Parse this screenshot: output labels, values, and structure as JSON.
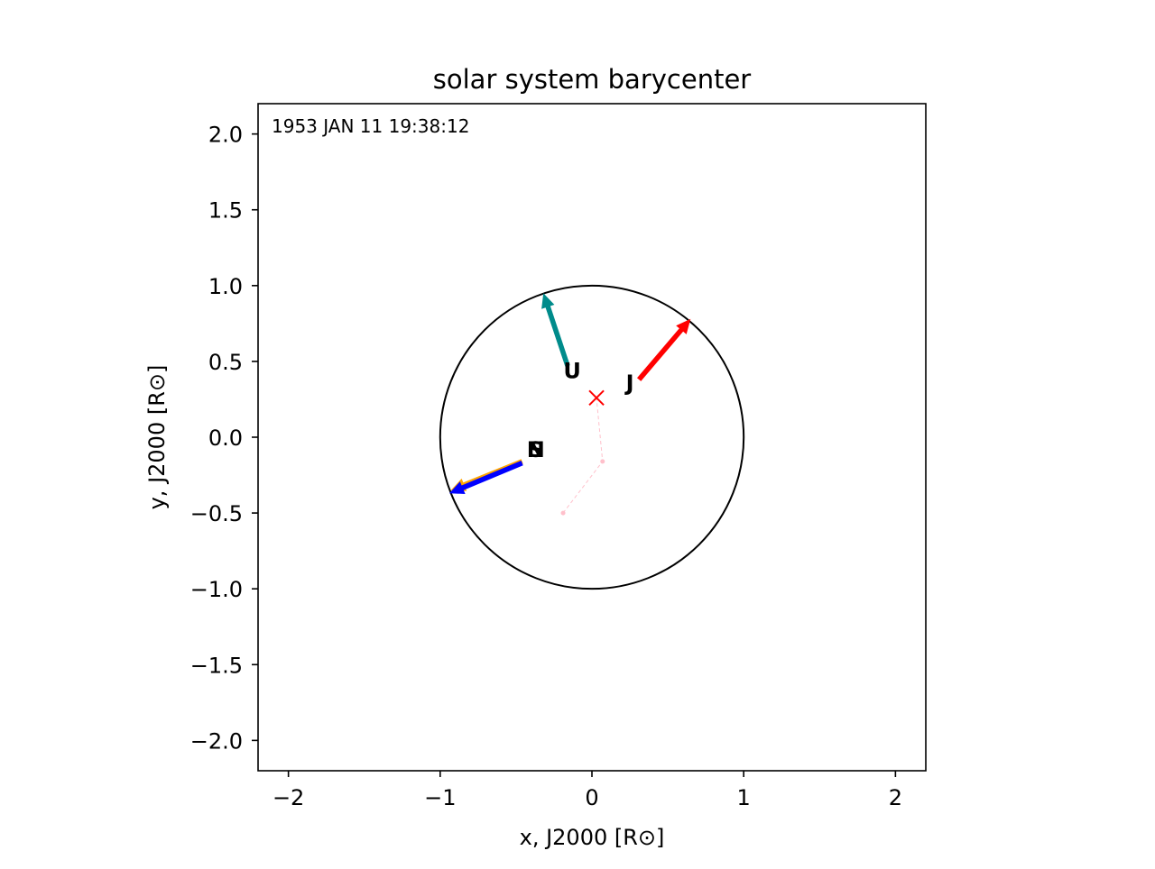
{
  "chart_data": {
    "type": "scatter",
    "title": "solar system barycenter",
    "xlabel": "x, J2000 [R⊙]",
    "ylabel": "y, J2000 [R⊙]",
    "xlim": [
      -2.2,
      2.2
    ],
    "ylim": [
      -2.2,
      2.2
    ],
    "x_ticks": [
      -2,
      -1,
      0,
      1,
      2
    ],
    "x_tick_labels": [
      "−2",
      "−1",
      "0",
      "1",
      "2"
    ],
    "y_ticks": [
      2.0,
      1.5,
      1.0,
      0.5,
      0.0,
      -0.5,
      -1.0,
      -1.5,
      -2.0
    ],
    "y_tick_labels": [
      "2.0",
      "1.5",
      "1.0",
      "0.5",
      "0.0",
      "−0.5",
      "−1.0",
      "−1.5",
      "−2.0"
    ],
    "grid": false,
    "timestamp": "1953 JAN 11 19:38:12",
    "sun_outline": {
      "center": [
        0,
        0
      ],
      "radius": 1.0,
      "color": "#000000"
    },
    "barycenter": {
      "x": 0.03,
      "y": 0.26,
      "marker": "x",
      "color": "#ff0000"
    },
    "barycenter_track": {
      "color": "#ffc0cb",
      "points": [
        [
          -0.19,
          -0.5
        ],
        [
          0.07,
          -0.16
        ],
        [
          0.03,
          0.26
        ]
      ]
    },
    "planets": [
      {
        "name": "J",
        "color": "#ff0000",
        "label_x": 0.25,
        "label_y": 0.31,
        "arrow_from": [
          0.31,
          0.38
        ],
        "arrow_to": [
          0.65,
          0.78
        ]
      },
      {
        "name": "U",
        "color": "#008b8b",
        "label_x": -0.13,
        "label_y": 0.39,
        "arrow_from": [
          -0.16,
          0.47
        ],
        "arrow_to": [
          -0.32,
          0.95
        ]
      },
      {
        "name": "S",
        "color": "#ffa500",
        "label_x": -0.37,
        "label_y": -0.13,
        "arrow_from": [
          -0.46,
          -0.16
        ],
        "arrow_to": [
          -0.93,
          -0.35
        ]
      },
      {
        "name": "N",
        "color": "#0000ff",
        "label_x": -0.37,
        "label_y": -0.13,
        "arrow_from": [
          -0.46,
          -0.17
        ],
        "arrow_to": [
          -0.94,
          -0.37
        ]
      }
    ]
  }
}
